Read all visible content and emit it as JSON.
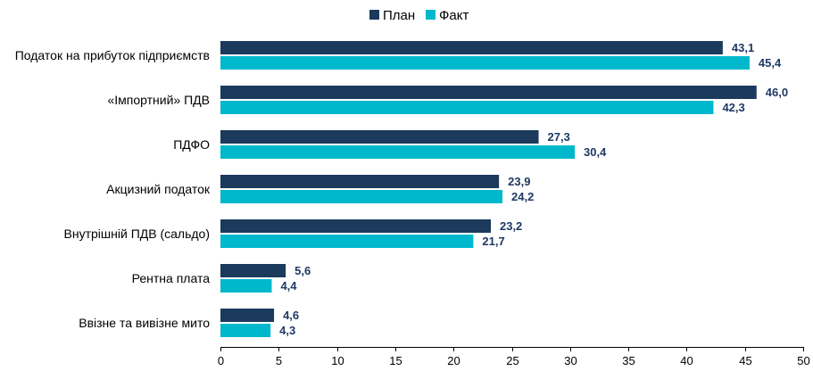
{
  "chart_data": {
    "type": "bar",
    "orientation": "horizontal",
    "categories": [
      "Податок на прибуток підприємств",
      "«Імпортний» ПДВ",
      "ПДФО",
      "Акцизний податок",
      "Внутрішній ПДВ (сальдо)",
      "Рентна плата",
      "Ввізне та вивізне мито"
    ],
    "series": [
      {
        "name": "План",
        "color": "#1B3A5C",
        "values": [
          43.1,
          46.0,
          27.3,
          23.9,
          23.2,
          5.6,
          4.6
        ],
        "labels": [
          "43,1",
          "46,0",
          "27,3",
          "23,9",
          "23,2",
          "5,6",
          "4,6"
        ]
      },
      {
        "name": "Факт",
        "color": "#00B8CC",
        "values": [
          45.4,
          42.3,
          30.4,
          24.2,
          21.7,
          4.4,
          4.3
        ],
        "labels": [
          "45,4",
          "42,3",
          "30,4",
          "24,2",
          "21,7",
          "4,4",
          "4,3"
        ]
      }
    ],
    "x_ticks": [
      "0",
      "5",
      "10",
      "15",
      "20",
      "25",
      "30",
      "35",
      "40",
      "45",
      "50"
    ],
    "xlim": [
      0,
      50
    ],
    "grid": false,
    "legend_position": "top-center",
    "data_label_color": "#1F3864"
  }
}
